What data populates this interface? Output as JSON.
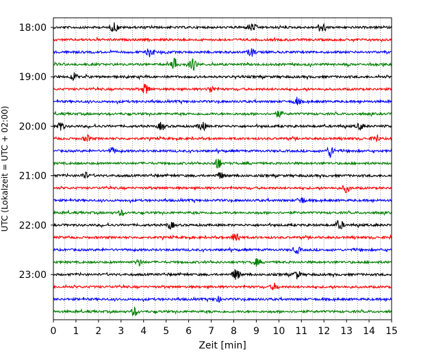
{
  "chart_data": {
    "type": "line",
    "subtype": "helicorder",
    "xlabel": "Zeit  [min]",
    "ylabel": "UTC (Lokalzeit = UTC + 02:00)",
    "xlim": [
      0,
      15
    ],
    "x_ticks": [
      "0",
      "1",
      "2",
      "3",
      "4",
      "5",
      "6",
      "7",
      "8",
      "9",
      "10",
      "11",
      "12",
      "13",
      "14",
      "15"
    ],
    "y_tick_labels": [
      "18:00",
      "19:00",
      "20:00",
      "21:00",
      "22:00",
      "23:00"
    ],
    "grid": {
      "vertical_minor_every_min": 0.5,
      "style": "dotted"
    },
    "color_cycle": [
      "#000000",
      "#ff0000",
      "#0000ff",
      "#008000"
    ],
    "traces": [
      {
        "start": "18:00",
        "color": "#000000",
        "events": [
          {
            "t": 2.7,
            "amp": 0.6
          },
          {
            "t": 8.8,
            "amp": 0.5
          },
          {
            "t": 11.9,
            "amp": 0.6
          }
        ]
      },
      {
        "start": "18:15",
        "color": "#ff0000",
        "events": []
      },
      {
        "start": "18:30",
        "color": "#0000ff",
        "events": [
          {
            "t": 4.3,
            "amp": 0.6
          },
          {
            "t": 8.8,
            "amp": 0.5
          }
        ]
      },
      {
        "start": "18:45",
        "color": "#008000",
        "events": [
          {
            "t": 5.4,
            "amp": 0.8
          },
          {
            "t": 6.2,
            "amp": 0.7
          }
        ]
      },
      {
        "start": "19:00",
        "color": "#000000",
        "events": [
          {
            "t": 0.9,
            "amp": 0.4
          }
        ]
      },
      {
        "start": "19:15",
        "color": "#ff0000",
        "events": [
          {
            "t": 4.1,
            "amp": 0.7
          },
          {
            "t": 7.0,
            "amp": 0.4
          }
        ]
      },
      {
        "start": "19:30",
        "color": "#0000ff",
        "events": [
          {
            "t": 10.8,
            "amp": 0.4
          }
        ]
      },
      {
        "start": "19:45",
        "color": "#008000",
        "events": [
          {
            "t": 10.0,
            "amp": 0.4
          }
        ]
      },
      {
        "start": "20:00",
        "color": "#000000",
        "events": [
          {
            "t": 0.3,
            "amp": 0.6
          },
          {
            "t": 4.8,
            "amp": 0.5
          },
          {
            "t": 6.6,
            "amp": 0.6
          },
          {
            "t": 13.6,
            "amp": 0.4
          }
        ]
      },
      {
        "start": "20:15",
        "color": "#ff0000",
        "events": [
          {
            "t": 1.5,
            "amp": 0.4
          },
          {
            "t": 14.3,
            "amp": 0.4
          }
        ]
      },
      {
        "start": "20:30",
        "color": "#0000ff",
        "events": [
          {
            "t": 2.6,
            "amp": 0.4
          },
          {
            "t": 12.3,
            "amp": 0.8
          }
        ]
      },
      {
        "start": "20:45",
        "color": "#008000",
        "events": [
          {
            "t": 7.3,
            "amp": 0.7
          }
        ]
      },
      {
        "start": "21:00",
        "color": "#000000",
        "events": [
          {
            "t": 1.4,
            "amp": 0.4
          },
          {
            "t": 7.4,
            "amp": 0.4
          }
        ]
      },
      {
        "start": "21:15",
        "color": "#ff0000",
        "events": [
          {
            "t": 13.0,
            "amp": 0.5
          }
        ]
      },
      {
        "start": "21:30",
        "color": "#0000ff",
        "events": [
          {
            "t": 11.0,
            "amp": 0.4
          }
        ]
      },
      {
        "start": "21:45",
        "color": "#008000",
        "events": [
          {
            "t": 3.0,
            "amp": 0.3
          }
        ]
      },
      {
        "start": "22:00",
        "color": "#000000",
        "events": [
          {
            "t": 5.2,
            "amp": 0.4
          },
          {
            "t": 12.7,
            "amp": 0.6
          }
        ]
      },
      {
        "start": "22:15",
        "color": "#ff0000",
        "events": [
          {
            "t": 8.1,
            "amp": 0.8
          }
        ]
      },
      {
        "start": "22:30",
        "color": "#0000ff",
        "events": [
          {
            "t": 10.8,
            "amp": 0.4
          }
        ]
      },
      {
        "start": "22:45",
        "color": "#008000",
        "events": [
          {
            "t": 3.8,
            "amp": 0.4
          },
          {
            "t": 9.0,
            "amp": 0.4
          }
        ]
      },
      {
        "start": "23:00",
        "color": "#000000",
        "events": [
          {
            "t": 8.1,
            "amp": 0.7
          },
          {
            "t": 10.8,
            "amp": 0.5
          }
        ]
      },
      {
        "start": "23:15",
        "color": "#ff0000",
        "events": [
          {
            "t": 9.8,
            "amp": 0.4
          }
        ]
      },
      {
        "start": "23:30",
        "color": "#0000ff",
        "events": [
          {
            "t": 7.3,
            "amp": 0.3
          }
        ]
      },
      {
        "start": "23:45",
        "color": "#008000",
        "events": [
          {
            "t": 3.6,
            "amp": 0.5
          }
        ]
      }
    ]
  }
}
